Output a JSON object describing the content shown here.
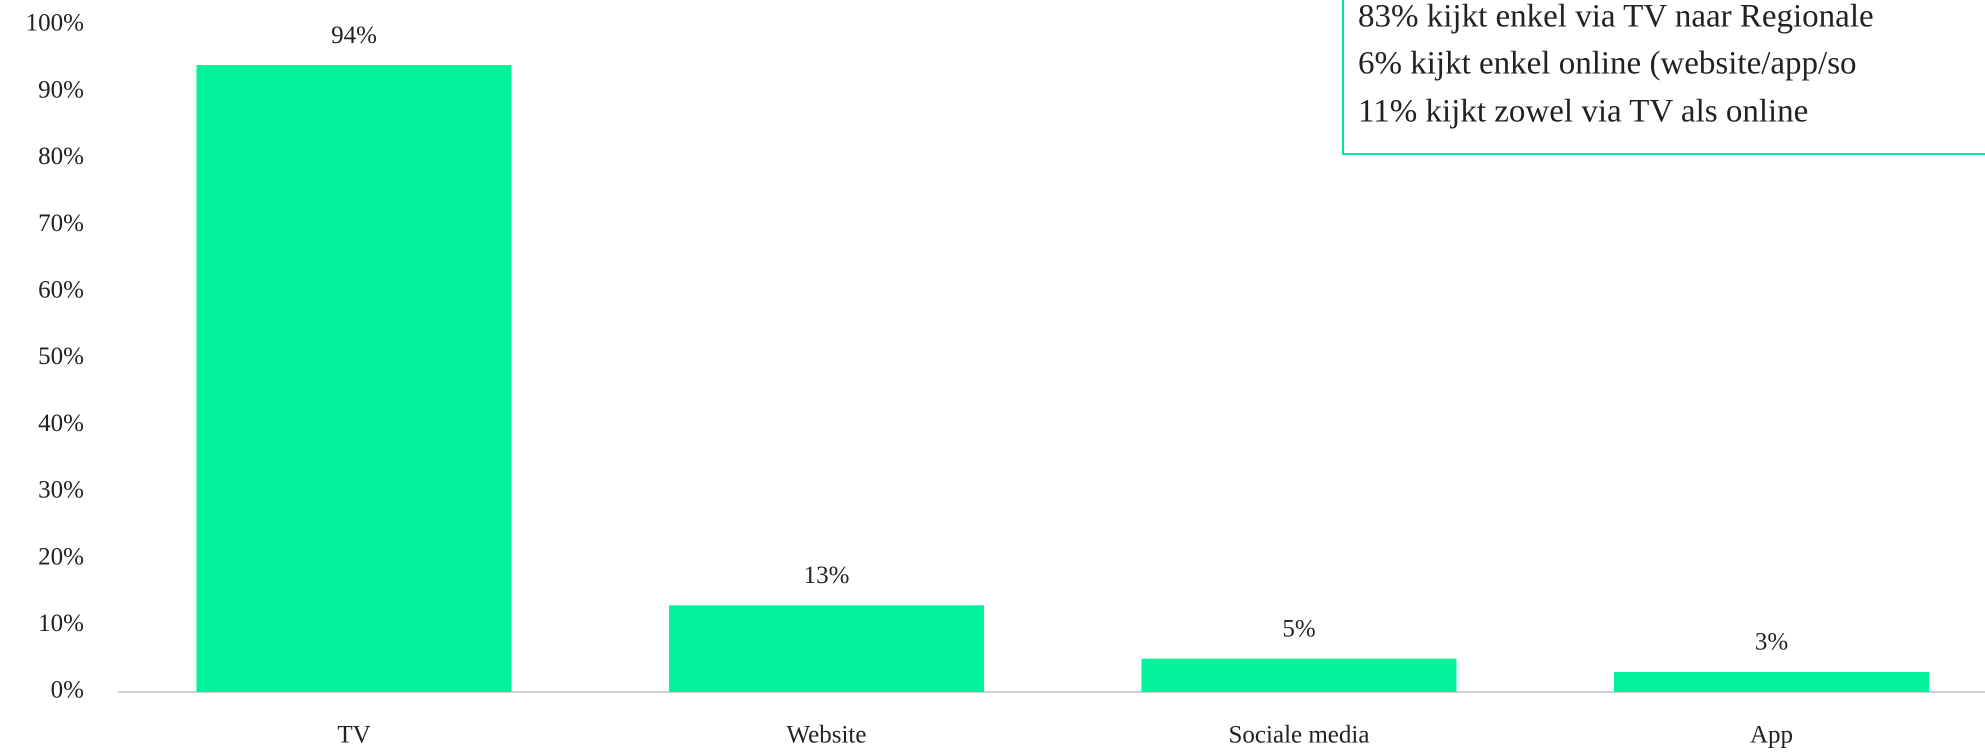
{
  "chart_data": {
    "type": "bar",
    "categories": [
      "TV",
      "Website",
      "Sociale media",
      "App"
    ],
    "values": [
      94,
      13,
      5,
      3
    ],
    "value_labels": [
      "94%",
      "13%",
      "5%",
      "3%"
    ],
    "color": "#00f39b",
    "ylim": [
      0,
      100
    ],
    "yticks": [
      {
        "value": 0,
        "label": "0%"
      },
      {
        "value": 10,
        "label": "10%"
      },
      {
        "value": 20,
        "label": "20%"
      },
      {
        "value": 30,
        "label": "30%"
      },
      {
        "value": 40,
        "label": "40%"
      },
      {
        "value": 50,
        "label": "50%"
      },
      {
        "value": 60,
        "label": "60%"
      },
      {
        "value": 70,
        "label": "70%"
      },
      {
        "value": 80,
        "label": "80%"
      },
      {
        "value": 90,
        "label": "90%"
      },
      {
        "value": 100,
        "label": "100%"
      }
    ],
    "grid": false,
    "annotations": [
      "83% kijkt enkel via TV naar Regionale",
      "6% kijkt enkel online (website/app/so",
      "11% kijkt zowel via TV als online"
    ]
  }
}
